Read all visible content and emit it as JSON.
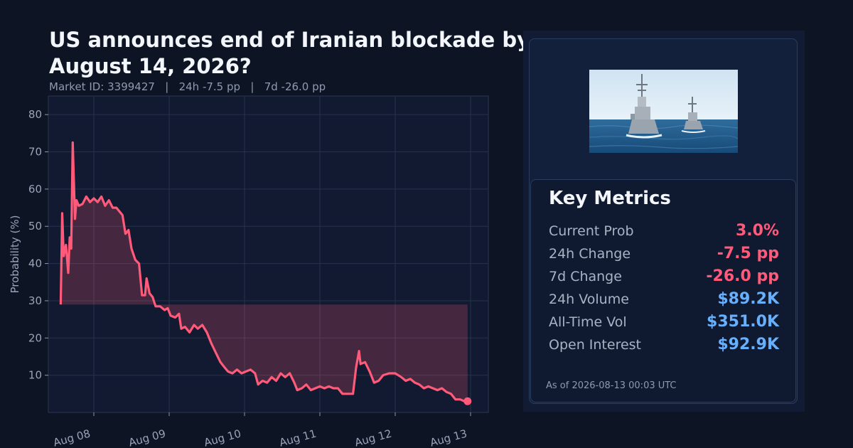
{
  "header": {
    "title": "US announces end of Iranian blockade by August 14, 2026?",
    "subtitle": "Market ID: 3399427   |   24h -7.5 pp   |   7d -26.0 pp"
  },
  "metrics": {
    "title": "Key Metrics",
    "rows": [
      {
        "label": "Current Prob",
        "value": "3.0%",
        "tone": "neg"
      },
      {
        "label": "24h Change",
        "value": "-7.5 pp",
        "tone": "neg"
      },
      {
        "label": "7d Change",
        "value": "-26.0 pp",
        "tone": "neg"
      },
      {
        "label": "24h Volume",
        "value": "$89.2K",
        "tone": "pos"
      },
      {
        "label": "All-Time Vol",
        "value": "$351.0K",
        "tone": "pos"
      },
      {
        "label": "Open Interest",
        "value": "$92.9K",
        "tone": "pos"
      }
    ],
    "as_of": "As of 2026-08-13 00:03 UTC"
  },
  "colors": {
    "line": "#ff5a7a",
    "negative": "#ff5a7a",
    "positive": "#67b0ff",
    "background": "#0d1424",
    "plot_bg": "#111a30"
  },
  "chart_data": {
    "type": "line",
    "title": "",
    "ylabel": "Probability (%)",
    "xlabel": "",
    "ylim": [
      0,
      85
    ],
    "yticks": [
      10,
      20,
      30,
      40,
      50,
      60,
      70,
      80
    ],
    "xticks": [
      "Aug 08",
      "Aug 09",
      "Aug 10",
      "Aug 11",
      "Aug 12",
      "Aug 13"
    ],
    "xlim_days": [
      -0.6,
      0.24
    ],
    "grid": true,
    "baseline": 29,
    "fill_to_baseline": true,
    "series": [
      {
        "name": "",
        "points": [
          [
            -0.44,
            29
          ],
          [
            -0.42,
            53.5
          ],
          [
            -0.4,
            42
          ],
          [
            -0.37,
            45
          ],
          [
            -0.34,
            37.5
          ],
          [
            -0.32,
            47
          ],
          [
            -0.3,
            44
          ],
          [
            -0.28,
            72.5
          ],
          [
            -0.25,
            52
          ],
          [
            -0.23,
            57
          ],
          [
            -0.2,
            55.5
          ],
          [
            -0.15,
            56
          ],
          [
            -0.1,
            58
          ],
          [
            -0.05,
            56.5
          ],
          [
            0.0,
            57.5
          ],
          [
            0.05,
            56.5
          ],
          [
            0.1,
            58
          ],
          [
            0.15,
            55.5
          ],
          [
            0.2,
            57
          ],
          [
            0.25,
            55
          ],
          [
            0.3,
            55
          ],
          [
            0.38,
            53
          ],
          [
            0.42,
            48
          ],
          [
            0.46,
            49
          ],
          [
            0.5,
            44
          ],
          [
            0.55,
            41
          ],
          [
            0.6,
            40
          ],
          [
            0.64,
            31.5
          ],
          [
            0.68,
            31.5
          ],
          [
            0.7,
            36
          ],
          [
            0.74,
            32
          ],
          [
            0.78,
            31
          ],
          [
            0.82,
            28.5
          ],
          [
            0.88,
            28.5
          ],
          [
            0.94,
            27.5
          ],
          [
            0.98,
            28
          ],
          [
            1.02,
            26
          ],
          [
            1.08,
            25.5
          ],
          [
            1.13,
            26.5
          ],
          [
            1.16,
            22.5
          ],
          [
            1.21,
            23
          ],
          [
            1.27,
            21.5
          ],
          [
            1.33,
            23.5
          ],
          [
            1.38,
            22.5
          ],
          [
            1.44,
            23.5
          ],
          [
            1.5,
            21.5
          ],
          [
            1.56,
            18.5
          ],
          [
            1.62,
            16
          ],
          [
            1.68,
            13.5
          ],
          [
            1.74,
            12
          ],
          [
            1.78,
            11
          ],
          [
            1.84,
            10.5
          ],
          [
            1.9,
            11.5
          ],
          [
            1.96,
            10.5
          ],
          [
            2.02,
            11
          ],
          [
            2.08,
            11.5
          ],
          [
            2.14,
            10.5
          ],
          [
            2.18,
            7.5
          ],
          [
            2.24,
            8.5
          ],
          [
            2.3,
            8
          ],
          [
            2.36,
            9.5
          ],
          [
            2.42,
            8.5
          ],
          [
            2.48,
            10.5
          ],
          [
            2.54,
            9.5
          ],
          [
            2.6,
            10.5
          ],
          [
            2.66,
            8
          ],
          [
            2.7,
            6
          ],
          [
            2.76,
            6.5
          ],
          [
            2.82,
            7.5
          ],
          [
            2.88,
            6
          ],
          [
            2.94,
            6.5
          ],
          [
            3.0,
            7
          ],
          [
            3.06,
            6.5
          ],
          [
            3.12,
            7
          ],
          [
            3.18,
            6.5
          ],
          [
            3.24,
            6.5
          ],
          [
            3.3,
            5
          ],
          [
            3.44,
            5
          ],
          [
            3.48,
            12
          ],
          [
            3.52,
            16.5
          ],
          [
            3.54,
            13
          ],
          [
            3.6,
            13.5
          ],
          [
            3.66,
            11
          ],
          [
            3.72,
            8
          ],
          [
            3.78,
            8.5
          ],
          [
            3.84,
            10
          ],
          [
            3.92,
            10.5
          ],
          [
            4.0,
            10.5
          ],
          [
            4.08,
            9.5
          ],
          [
            4.14,
            8.5
          ],
          [
            4.2,
            9
          ],
          [
            4.26,
            8
          ],
          [
            4.32,
            7.5
          ],
          [
            4.38,
            6.5
          ],
          [
            4.44,
            7
          ],
          [
            4.5,
            6.5
          ],
          [
            4.56,
            6
          ],
          [
            4.62,
            6.5
          ],
          [
            4.68,
            5.5
          ],
          [
            4.74,
            5
          ],
          [
            4.8,
            3.5
          ],
          [
            4.86,
            3.5
          ],
          [
            4.92,
            3
          ],
          [
            4.96,
            3
          ]
        ]
      }
    ],
    "last_point_marker": true
  }
}
